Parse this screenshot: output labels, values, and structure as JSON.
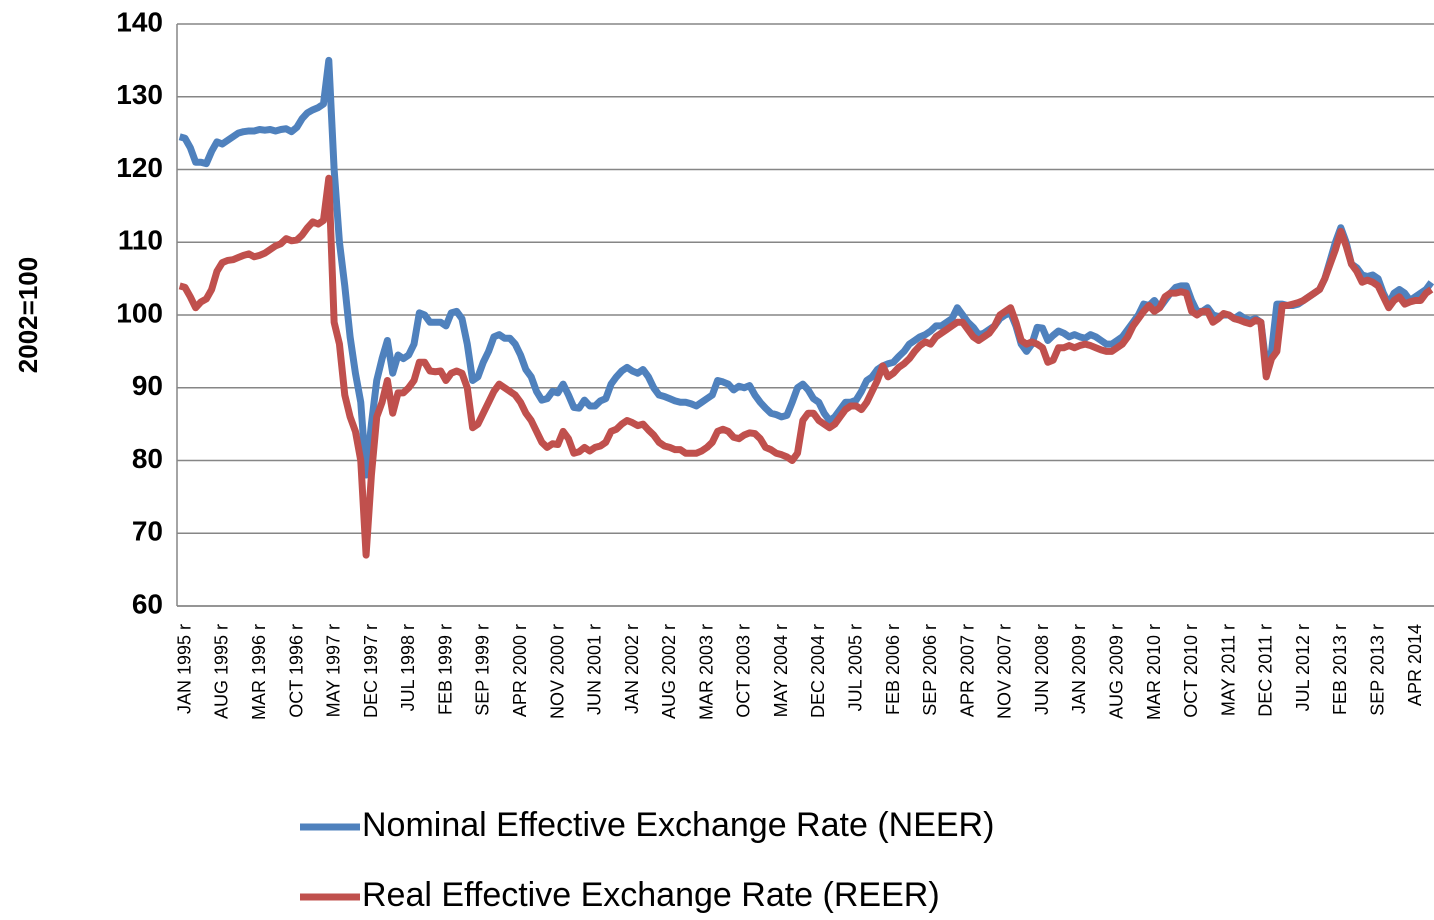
{
  "chart_data": {
    "type": "line",
    "y_label": "2002=100",
    "legend": "bottom",
    "grid": true,
    "ylim": [
      60,
      140
    ],
    "yticks": [
      60,
      70,
      80,
      90,
      100,
      110,
      120,
      130,
      140
    ],
    "categories": [
      "JAN 1995 r",
      null,
      null,
      null,
      null,
      null,
      null,
      "AUG 1995 r",
      null,
      null,
      null,
      null,
      null,
      null,
      "MAR 1996 r",
      null,
      null,
      null,
      null,
      null,
      null,
      "OCT 1996 r",
      null,
      null,
      null,
      null,
      null,
      null,
      "MAY 1997 r",
      null,
      null,
      null,
      null,
      null,
      null,
      "DEC 1997 r",
      null,
      null,
      null,
      null,
      null,
      null,
      "JUL 1998 r",
      null,
      null,
      null,
      null,
      null,
      null,
      "FEB 1999 r",
      null,
      null,
      null,
      null,
      null,
      null,
      "SEP 1999 r",
      null,
      null,
      null,
      null,
      null,
      null,
      "APR 2000 r",
      null,
      null,
      null,
      null,
      null,
      null,
      "NOV 2000 r",
      null,
      null,
      null,
      null,
      null,
      null,
      "JUN 2001 r",
      null,
      null,
      null,
      null,
      null,
      null,
      "JAN 2002 r",
      null,
      null,
      null,
      null,
      null,
      null,
      "AUG 2002 r",
      null,
      null,
      null,
      null,
      null,
      null,
      "MAR 2003 r",
      null,
      null,
      null,
      null,
      null,
      null,
      "OCT 2003 r",
      null,
      null,
      null,
      null,
      null,
      null,
      "MAY 2004 r",
      null,
      null,
      null,
      null,
      null,
      null,
      "DEC 2004 r",
      null,
      null,
      null,
      null,
      null,
      null,
      "JUL 2005 r",
      null,
      null,
      null,
      null,
      null,
      null,
      "FEB 2006 r",
      null,
      null,
      null,
      null,
      null,
      null,
      "SEP 2006 r",
      null,
      null,
      null,
      null,
      null,
      null,
      "APR 2007 r",
      null,
      null,
      null,
      null,
      null,
      null,
      "NOV 2007 r",
      null,
      null,
      null,
      null,
      null,
      null,
      "JUN 2008 r",
      null,
      null,
      null,
      null,
      null,
      null,
      "JAN 2009 r",
      null,
      null,
      null,
      null,
      null,
      null,
      "AUG 2009 r",
      null,
      null,
      null,
      null,
      null,
      null,
      "MAR 2010 r",
      null,
      null,
      null,
      null,
      null,
      null,
      "OCT 2010 r",
      null,
      null,
      null,
      null,
      null,
      null,
      "MAY 2011 r",
      null,
      null,
      null,
      null,
      null,
      null,
      "DEC 2011 r",
      null,
      null,
      null,
      null,
      null,
      null,
      "JUL 2012 r",
      null,
      null,
      null,
      null,
      null,
      null,
      "FEB 2013 r",
      null,
      null,
      null,
      null,
      null,
      null,
      "SEP 2013 r",
      null,
      null,
      null,
      null,
      null,
      null,
      "APR 2014",
      null,
      null,
      null,
      null
    ],
    "series": [
      {
        "name": "Nominal Effective Exchange Rate (NEER)",
        "color": "#4f81bd",
        "values": [
          124.5,
          124.3,
          123,
          121,
          121,
          120.8,
          122.5,
          123.8,
          123.5,
          124,
          124.5,
          125,
          125.2,
          125.3,
          125.3,
          125.5,
          125.4,
          125.5,
          125.3,
          125.5,
          125.6,
          125.2,
          125.8,
          127,
          127.8,
          128.2,
          128.5,
          129,
          135,
          120,
          110,
          104,
          97,
          92,
          88,
          78,
          85,
          91,
          94,
          96.5,
          92,
          94.5,
          94,
          94.5,
          96,
          100.3,
          100,
          99,
          99,
          99,
          98.5,
          100.3,
          100.5,
          99.5,
          96,
          91,
          91.5,
          93.5,
          95,
          97,
          97.3,
          96.8,
          96.8,
          96,
          94.5,
          92.5,
          91.5,
          89.5,
          88.3,
          88.5,
          89.5,
          89.3,
          90.5,
          89,
          87.3,
          87.2,
          88.3,
          87.5,
          87.5,
          88.2,
          88.5,
          90.5,
          91.5,
          92.3,
          92.8,
          92.3,
          92,
          92.5,
          91.5,
          90,
          89,
          88.8,
          88.5,
          88.2,
          88,
          88,
          87.8,
          87.5,
          88,
          88.5,
          89,
          91,
          90.8,
          90.5,
          89.7,
          90.2,
          90,
          90.3,
          89,
          88,
          87.2,
          86.5,
          86.3,
          86,
          86.2,
          88,
          90,
          90.5,
          89.7,
          88.5,
          88,
          86.5,
          85.5,
          86,
          87,
          88,
          88,
          88.3,
          89.5,
          91,
          91.5,
          92.5,
          93,
          93.3,
          93.5,
          94.3,
          95,
          96,
          96.5,
          97,
          97.3,
          97.8,
          98.5,
          98.5,
          99,
          99.5,
          101,
          100,
          99,
          98.3,
          97.3,
          97.5,
          98,
          98.5,
          99.5,
          100,
          100.3,
          98.5,
          96,
          95,
          96,
          98.3,
          98.2,
          96.5,
          97.2,
          97.8,
          97.5,
          97,
          97.3,
          97,
          96.8,
          97.3,
          97,
          96.5,
          96,
          96,
          96.5,
          97,
          98,
          99,
          100,
          101.5,
          101.3,
          102,
          101,
          102,
          103,
          103.8,
          104,
          104,
          102,
          100.5,
          100.5,
          101,
          100,
          99.8,
          100,
          100,
          99.5,
          100,
          99.5,
          99.3,
          99.5,
          99,
          93,
          95,
          101.5,
          101.5,
          101.3,
          101.3,
          101.5,
          102,
          102.5,
          103,
          103.5,
          105,
          107.5,
          110,
          112,
          110,
          107,
          106.5,
          105.5,
          105.3,
          105.5,
          105,
          103,
          101.5,
          103,
          103.5,
          103,
          102,
          102.5,
          103,
          103.5,
          104.5
        ]
      },
      {
        "name": "Real Effective Exchange Rate (REER)",
        "color": "#c0504d",
        "values": [
          104,
          103.8,
          102.5,
          101,
          101.8,
          102.2,
          103.5,
          106,
          107.2,
          107.5,
          107.6,
          107.9,
          108.2,
          108.4,
          108,
          108.2,
          108.5,
          109,
          109.5,
          109.8,
          110.5,
          110.2,
          110.3,
          111,
          112,
          112.8,
          112.5,
          113,
          118.8,
          99,
          96,
          89,
          86,
          84,
          80,
          67,
          78,
          86,
          88,
          91,
          86.5,
          89.3,
          89.3,
          90,
          91,
          93.5,
          93.5,
          92.3,
          92.2,
          92.3,
          91,
          92,
          92.3,
          92,
          90,
          84.5,
          85,
          86.5,
          88,
          89.5,
          90.5,
          90,
          89.5,
          89,
          88,
          86.5,
          85.5,
          84,
          82.5,
          81.8,
          82.3,
          82.2,
          84,
          83,
          81,
          81.2,
          81.8,
          81.3,
          81.8,
          82,
          82.5,
          84,
          84.3,
          85,
          85.5,
          85.2,
          84.8,
          85,
          84.2,
          83.5,
          82.5,
          82,
          81.8,
          81.5,
          81.5,
          81,
          81,
          81,
          81.3,
          81.8,
          82.5,
          84,
          84.3,
          84,
          83.2,
          83,
          83.5,
          83.8,
          83.7,
          83,
          81.8,
          81.5,
          81,
          80.8,
          80.5,
          80,
          81,
          85.5,
          86.5,
          86.5,
          85.5,
          85,
          84.5,
          85,
          86,
          87,
          87.5,
          87.5,
          87,
          88,
          89.5,
          91,
          93,
          91.5,
          92,
          92.8,
          93.3,
          94,
          95,
          95.8,
          96.3,
          96,
          97,
          97.5,
          98,
          98.5,
          99,
          99,
          98,
          97,
          96.5,
          97,
          97.5,
          98.5,
          100,
          100.5,
          101,
          99,
          96.5,
          96,
          96.3,
          96,
          95.5,
          93.5,
          93.8,
          95.5,
          95.5,
          95.8,
          95.5,
          95.8,
          96,
          95.8,
          95.5,
          95.2,
          95,
          95,
          95.5,
          96,
          97,
          98.5,
          99.5,
          100.5,
          101.3,
          100.5,
          101,
          102.5,
          103,
          103,
          103.2,
          103,
          100.5,
          100,
          100.5,
          100.5,
          99,
          99.5,
          100.2,
          100,
          99.5,
          99.3,
          99,
          98.8,
          99.3,
          99,
          91.5,
          94,
          95,
          101.3,
          101.3,
          101.5,
          101.7,
          102,
          102.5,
          103,
          103.5,
          105,
          107,
          109,
          111.5,
          109.5,
          107,
          106,
          104.5,
          104.8,
          104.5,
          104,
          102.5,
          101,
          102,
          102.5,
          101.5,
          101.8,
          102,
          102,
          103,
          103.5
        ]
      }
    ]
  }
}
